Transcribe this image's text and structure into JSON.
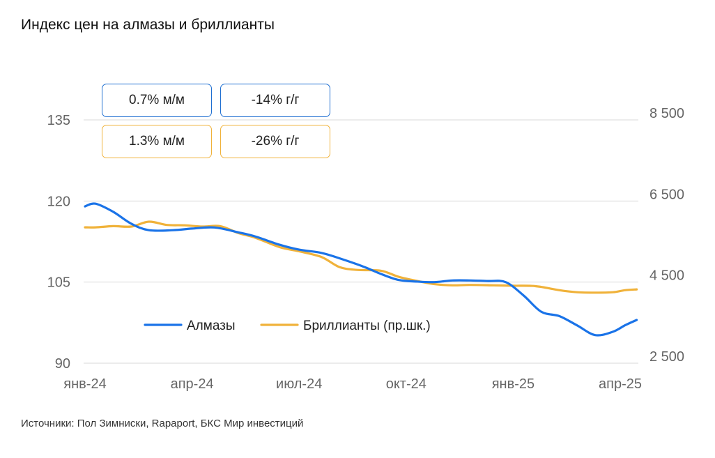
{
  "title": "Индекс цен на алмазы и бриллианты",
  "source": "Источники: Пол Зимниски, Rapaport, БКС Мир инвестиций",
  "badges": {
    "diamonds_mom": "0.7% м/м",
    "diamonds_yoy": "-14% г/г",
    "brilliants_mom": "1.3% м/м",
    "brilliants_yoy": "-26% г/г"
  },
  "colors": {
    "diamonds": "#1a73e8",
    "brilliants": "#f0b23a",
    "grid": "#d9d9d9",
    "tick_text": "#666666"
  },
  "chart_data": {
    "type": "line",
    "title": "Индекс цен на алмазы и бриллианты",
    "x_ticks": [
      "янв-24",
      "апр-24",
      "июл-24",
      "окт-24",
      "янв-25",
      "апр-25"
    ],
    "x_range": [
      "2024-01",
      "2025-04"
    ],
    "left_axis": {
      "ticks": [
        "90",
        "105",
        "120",
        "135"
      ],
      "range": [
        90,
        135
      ],
      "grid": true
    },
    "right_axis": {
      "ticks": [
        "2 500",
        "4 500",
        "6 500",
        "8 500"
      ],
      "range": [
        2500,
        8500
      ]
    },
    "legend_position": "bottom-center",
    "series": [
      {
        "name": "Алмазы",
        "axis": "left",
        "color": "#1a73e8",
        "x": [
          "2024-01-01",
          "2024-01-10",
          "2024-01-25",
          "2024-02-10",
          "2024-02-25",
          "2024-03-15",
          "2024-04-01",
          "2024-04-20",
          "2024-05-10",
          "2024-05-25",
          "2024-06-15",
          "2024-07-01",
          "2024-07-20",
          "2024-08-05",
          "2024-08-25",
          "2024-09-10",
          "2024-09-25",
          "2024-10-10",
          "2024-10-25",
          "2024-11-10",
          "2024-11-25",
          "2024-12-10",
          "2024-12-25",
          "2025-01-10",
          "2025-01-25",
          "2025-02-10",
          "2025-02-25",
          "2025-03-10",
          "2025-03-25",
          "2025-04-05",
          "2025-04-15"
        ],
        "values": [
          119.0,
          119.5,
          118.0,
          115.8,
          114.6,
          114.6,
          114.9,
          115.1,
          114.2,
          113.4,
          111.9,
          111.0,
          110.4,
          109.4,
          107.9,
          106.5,
          105.4,
          105.1,
          105.0,
          105.3,
          105.3,
          105.2,
          105.0,
          102.5,
          99.5,
          98.7,
          97.0,
          95.2,
          95.8,
          97.0,
          98.0
        ]
      },
      {
        "name": "Бриллианты (пр.шк.)",
        "axis": "right",
        "color": "#f0b23a",
        "x": [
          "2024-01-01",
          "2024-01-10",
          "2024-01-25",
          "2024-02-10",
          "2024-02-25",
          "2024-03-10",
          "2024-03-25",
          "2024-04-10",
          "2024-04-25",
          "2024-05-10",
          "2024-05-25",
          "2024-06-15",
          "2024-07-01",
          "2024-07-20",
          "2024-08-05",
          "2024-08-20",
          "2024-09-10",
          "2024-09-25",
          "2024-10-10",
          "2024-10-25",
          "2024-11-10",
          "2024-11-25",
          "2024-12-15",
          "2025-01-01",
          "2025-01-20",
          "2025-02-10",
          "2025-02-25",
          "2025-03-10",
          "2025-03-25",
          "2025-04-05",
          "2025-04-15"
        ],
        "values": [
          5850,
          5850,
          5880,
          5870,
          5990,
          5910,
          5900,
          5870,
          5880,
          5710,
          5590,
          5360,
          5260,
          5120,
          4870,
          4800,
          4780,
          4630,
          4530,
          4450,
          4420,
          4430,
          4420,
          4410,
          4400,
          4300,
          4250,
          4240,
          4250,
          4300,
          4320
        ]
      }
    ]
  }
}
